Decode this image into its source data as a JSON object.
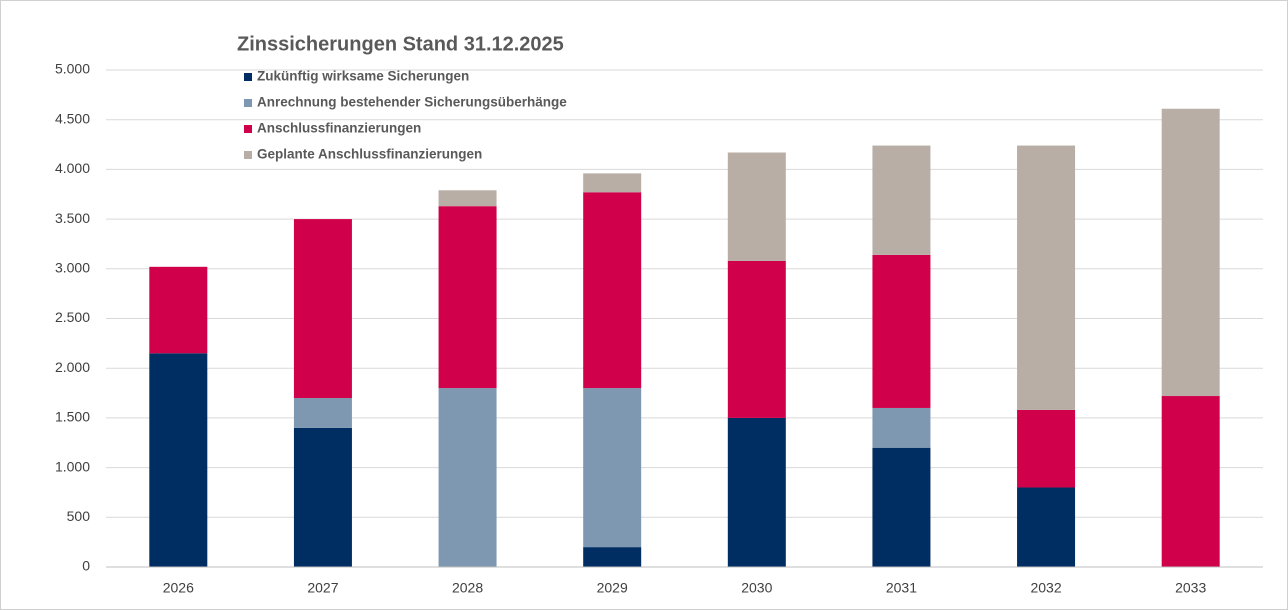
{
  "chart_data": {
    "type": "stacked_bar",
    "title": "Zinssicherungen Stand 31.12.2025",
    "categories": [
      "2026",
      "2027",
      "2028",
      "2029",
      "2030",
      "2031",
      "2032",
      "2033"
    ],
    "series": [
      {
        "name": "Zukünftig wirksame Sicherungen",
        "color": "#002d62",
        "values": [
          2150,
          1400,
          0,
          200,
          1500,
          1200,
          800,
          0
        ]
      },
      {
        "name": "Anrechnung bestehender Sicherungsüberhänge",
        "color": "#7f98b2",
        "values": [
          0,
          300,
          1800,
          1600,
          0,
          400,
          0,
          0
        ]
      },
      {
        "name": "Anschlussfinanzierungen",
        "color": "#d1004b",
        "values": [
          870,
          1800,
          1830,
          1970,
          1580,
          1540,
          780,
          1720
        ]
      },
      {
        "name": "Geplante Anschlussfinanzierungen",
        "color": "#b8aea6",
        "values": [
          0,
          0,
          160,
          190,
          1090,
          1100,
          2660,
          2890
        ]
      }
    ],
    "ylim": [
      0,
      5000
    ],
    "yticks": [
      0,
      500,
      {
        "value": 1000,
        "label": "1.000"
      },
      {
        "value": 1500,
        "label": "1.500"
      },
      {
        "value": 2000,
        "label": "2.000"
      },
      {
        "value": 2500,
        "label": "2.500"
      },
      {
        "value": 3000,
        "label": "3.000"
      },
      {
        "value": 3500,
        "label": "3.500"
      },
      {
        "value": 4000,
        "label": "4.000"
      },
      {
        "value": 4500,
        "label": "4.500"
      },
      {
        "value": 5000,
        "label": "5.000"
      }
    ],
    "grid": true,
    "legend": "top-left"
  }
}
